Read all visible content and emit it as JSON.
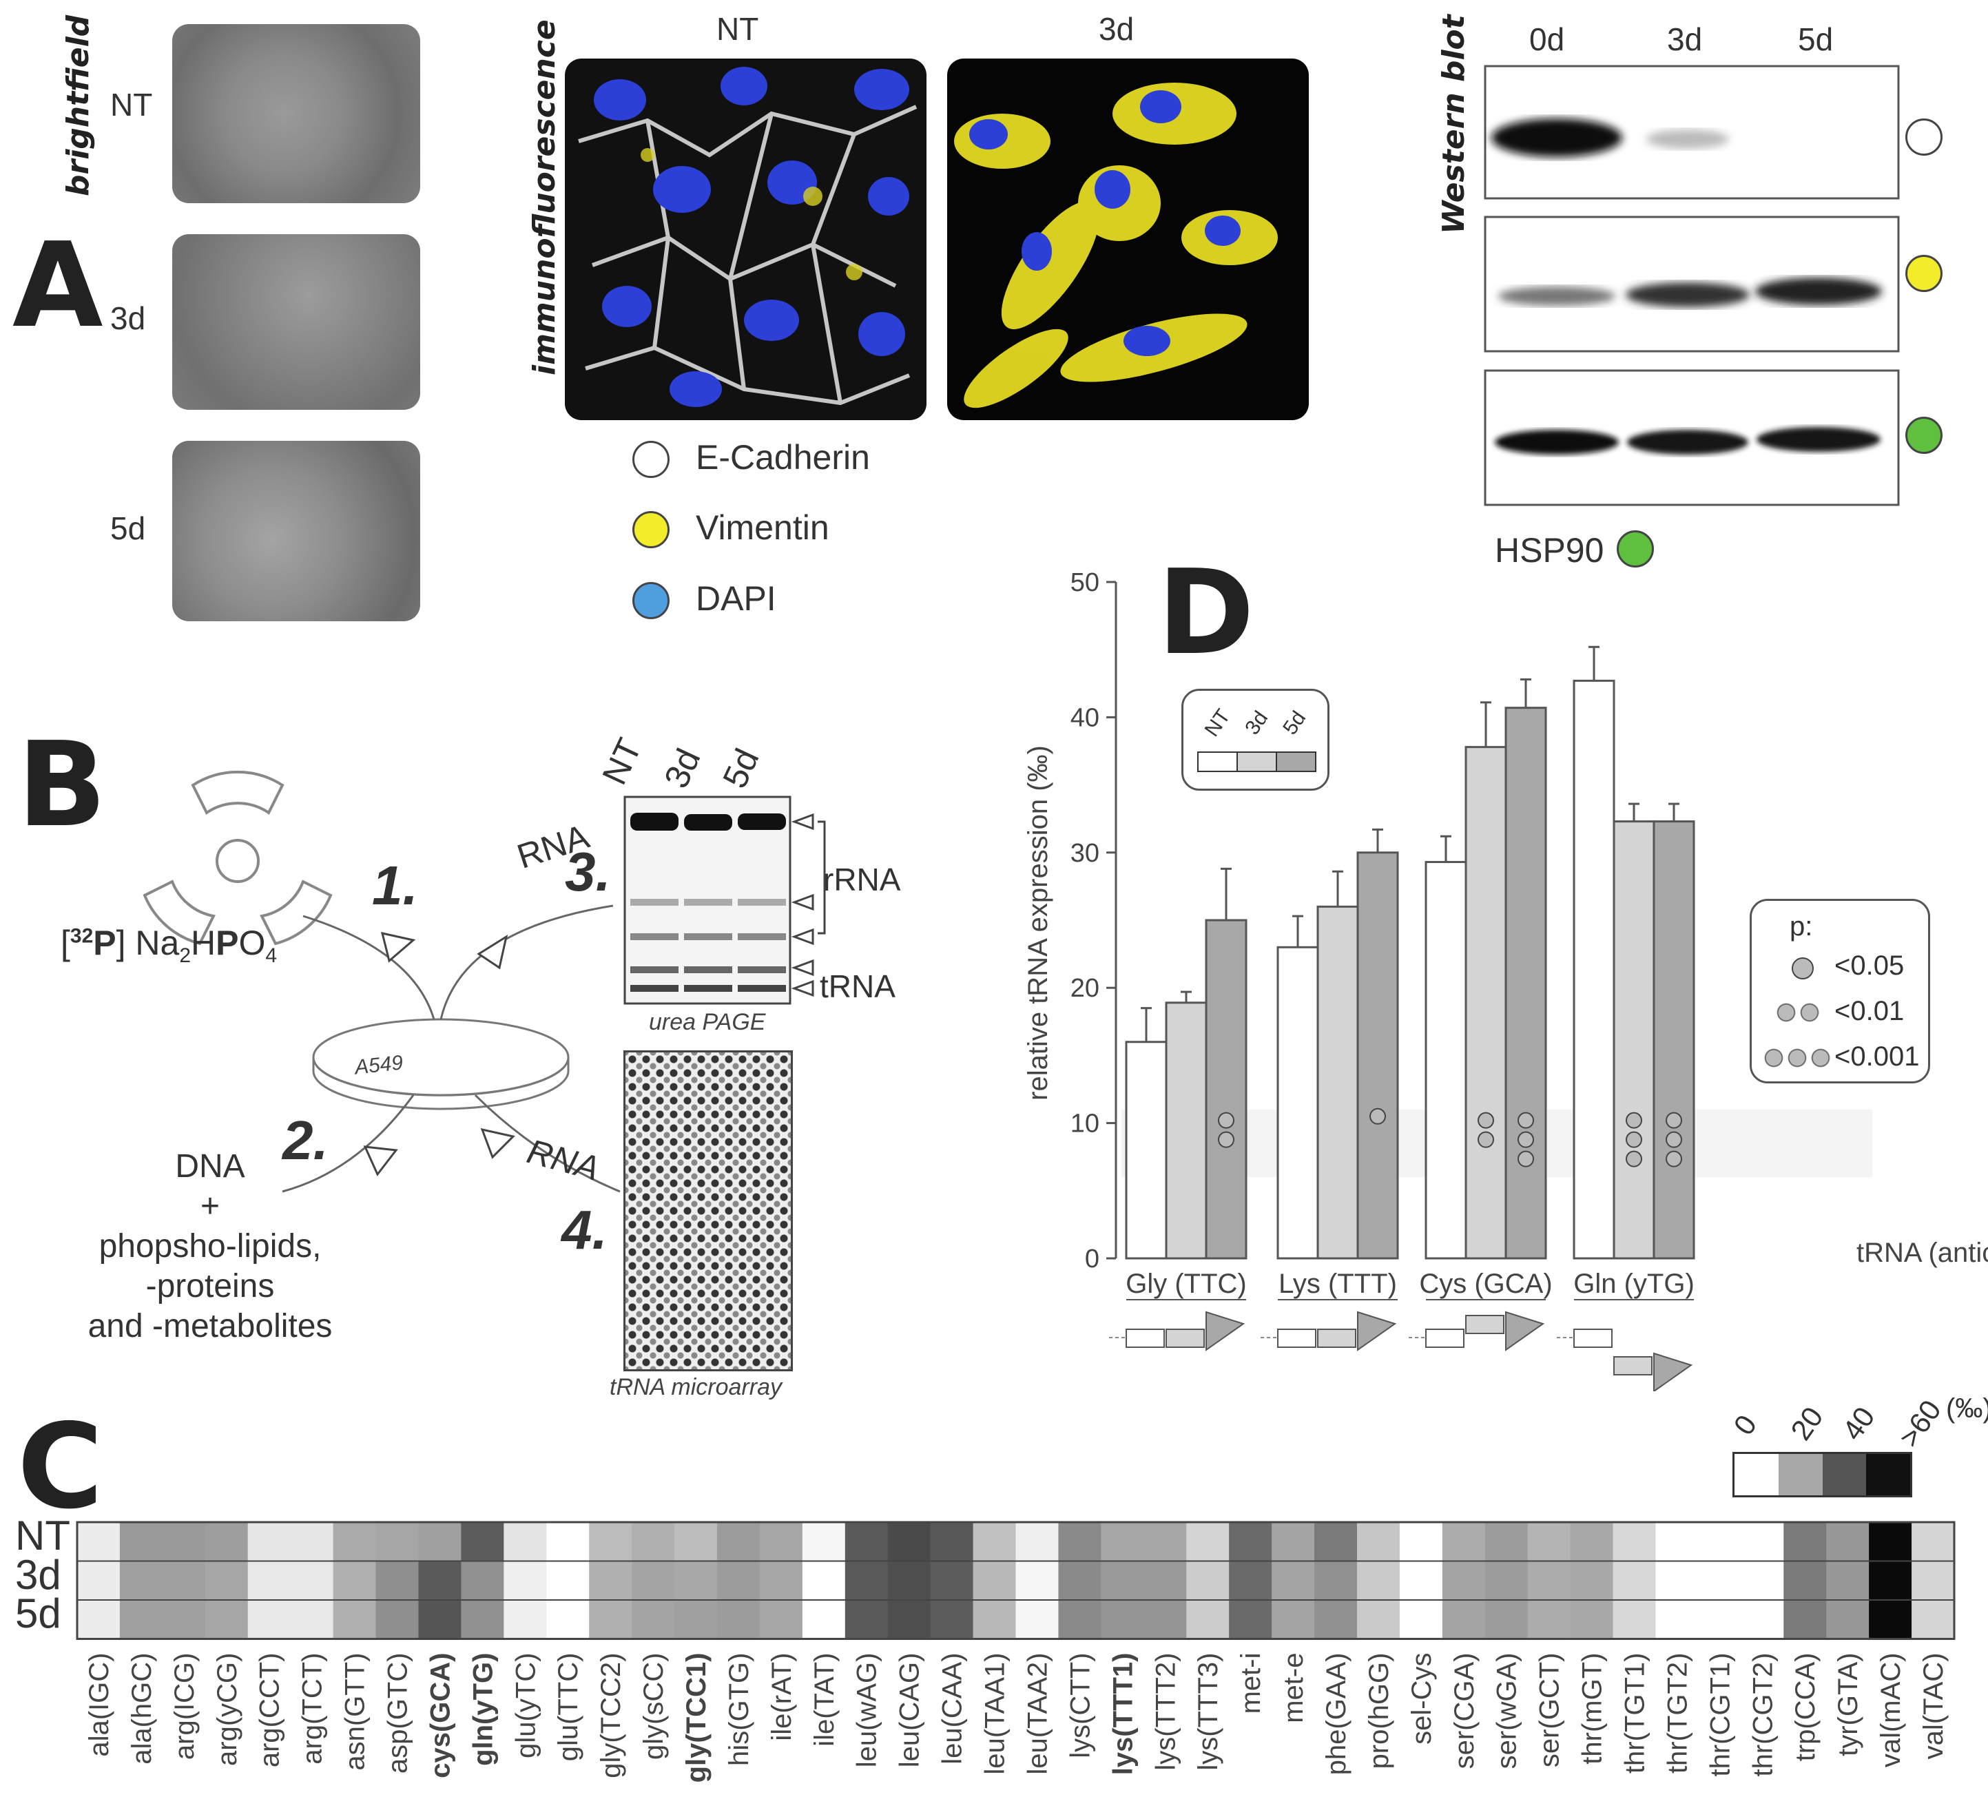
{
  "panelA": {
    "letter": "A",
    "brightfield": {
      "title": "brightfield",
      "rows": [
        "NT",
        "3d",
        "5d"
      ]
    },
    "immunofluorescence": {
      "title": "immunofluorescence",
      "cols": [
        "NT",
        "3d"
      ]
    },
    "legend": [
      {
        "label": "E-Cadherin",
        "color": "#ffffff"
      },
      {
        "label": "Vimentin",
        "color": "#f3ec2a"
      },
      {
        "label": "DAPI",
        "color": "#4f9fe0"
      }
    ],
    "western": {
      "title": "Western blot",
      "cols": [
        "0d",
        "3d",
        "5d"
      ],
      "hsp_label": "HSP90",
      "row_colors": [
        "#ffffff",
        "#f3ec2a",
        "#5fbf3f"
      ]
    }
  },
  "panelB": {
    "letter": "B",
    "isotope": {
      "pre": "[",
      "sup": "32",
      "bold1": "P",
      "mid": "] Na",
      "sub1": "2",
      "mid2": "H",
      "bold2": "P",
      "mid3": "O",
      "sub2": "4"
    },
    "dish_label": "A549",
    "steps": [
      "1.",
      "2.",
      "3.",
      "4."
    ],
    "rna_top": "RNA",
    "rna_bottom": "RNA",
    "dna_text": [
      "DNA",
      "+",
      "phopsho-lipids,",
      "-proteins",
      "and -metabolites"
    ],
    "gel": {
      "cols": [
        "NT",
        "3d",
        "5d"
      ],
      "rrna": "rRNA",
      "trna": "tRNA",
      "caption": "urea PAGE"
    },
    "microarray_caption": "tRNA microarray"
  },
  "panelC": {
    "letter": "C",
    "rows": [
      "NT",
      "3d",
      "5d"
    ],
    "scale": {
      "ticks": [
        "0",
        "20",
        "40",
        ">60"
      ],
      "unit": "(‰)",
      "colors": [
        "#ffffff",
        "#a8a8a8",
        "#555555",
        "#111111"
      ]
    },
    "columns": [
      {
        "name": "ala(IGC)",
        "bold": false,
        "shades": [
          "#ececec",
          "#ececec",
          "#ececec"
        ]
      },
      {
        "name": "ala(hGC)",
        "bold": false,
        "shades": [
          "#9a9a9a",
          "#a0a0a0",
          "#a0a0a0"
        ]
      },
      {
        "name": "arg(ICG)",
        "bold": false,
        "shades": [
          "#9a9a9a",
          "#a0a0a0",
          "#a0a0a0"
        ]
      },
      {
        "name": "arg(yCG)",
        "bold": false,
        "shades": [
          "#9e9e9e",
          "#a6a6a6",
          "#a6a6a6"
        ]
      },
      {
        "name": "arg(CCT)",
        "bold": false,
        "shades": [
          "#e6e6e6",
          "#e8e8e8",
          "#e8e8e8"
        ]
      },
      {
        "name": "arg(TCT)",
        "bold": false,
        "shades": [
          "#e6e6e6",
          "#e8e8e8",
          "#e8e8e8"
        ]
      },
      {
        "name": "asn(GTT)",
        "bold": false,
        "shades": [
          "#aaaaaa",
          "#b0b0b0",
          "#b0b0b0"
        ]
      },
      {
        "name": "asp(GTC)",
        "bold": false,
        "shades": [
          "#a6a6a6",
          "#8f8f8f",
          "#8f8f8f"
        ]
      },
      {
        "name": "cys(GCA)",
        "bold": true,
        "shades": [
          "#a0a0a0",
          "#5a5a5a",
          "#555555"
        ]
      },
      {
        "name": "gln(yTG)",
        "bold": true,
        "shades": [
          "#5c5c5c",
          "#909090",
          "#909090"
        ]
      },
      {
        "name": "glu(yTC)",
        "bold": false,
        "shades": [
          "#e4e4e4",
          "#efefef",
          "#efefef"
        ]
      },
      {
        "name": "glu(TTC)",
        "bold": false,
        "shades": [
          "#ffffff",
          "#ffffff",
          "#ffffff"
        ]
      },
      {
        "name": "gly(TCC2)",
        "bold": false,
        "shades": [
          "#bcbcbc",
          "#b0b0b0",
          "#b0b0b0"
        ]
      },
      {
        "name": "gly(sCC)",
        "bold": false,
        "shades": [
          "#b0b0b0",
          "#a4a4a4",
          "#a4a4a4"
        ]
      },
      {
        "name": "gly(TCC1)",
        "bold": true,
        "shades": [
          "#bdbdbd",
          "#a8a8a8",
          "#a0a0a0"
        ]
      },
      {
        "name": "his(GTG)",
        "bold": false,
        "shades": [
          "#9c9c9c",
          "#9c9c9c",
          "#9c9c9c"
        ]
      },
      {
        "name": "ile(rAT)",
        "bold": false,
        "shades": [
          "#a6a6a6",
          "#a6a6a6",
          "#a6a6a6"
        ]
      },
      {
        "name": "ile(TAT)",
        "bold": false,
        "shades": [
          "#f6f6f6",
          "#ffffff",
          "#ffffff"
        ]
      },
      {
        "name": "leu(wAG)",
        "bold": false,
        "shades": [
          "#5a5a5a",
          "#5a5a5a",
          "#5a5a5a"
        ]
      },
      {
        "name": "leu(CAG)",
        "bold": false,
        "shades": [
          "#4a4a4a",
          "#4e4e4e",
          "#4e4e4e"
        ]
      },
      {
        "name": "leu(CAA)",
        "bold": false,
        "shades": [
          "#585858",
          "#5c5c5c",
          "#5c5c5c"
        ]
      },
      {
        "name": "leu(TAA1)",
        "bold": false,
        "shades": [
          "#c0c0c0",
          "#b8b8b8",
          "#b8b8b8"
        ]
      },
      {
        "name": "leu(TAA2)",
        "bold": false,
        "shades": [
          "#f0f0f0",
          "#f6f6f6",
          "#f6f6f6"
        ]
      },
      {
        "name": "lys(CTT)",
        "bold": false,
        "shades": [
          "#8a8a8a",
          "#8a8a8a",
          "#8a8a8a"
        ]
      },
      {
        "name": "lys(TTT1)",
        "bold": true,
        "shades": [
          "#a6a6a6",
          "#9a9a9a",
          "#949494"
        ]
      },
      {
        "name": "lys(TTT2)",
        "bold": false,
        "shades": [
          "#a6a6a6",
          "#9a9a9a",
          "#949494"
        ]
      },
      {
        "name": "lys(TTT3)",
        "bold": false,
        "shades": [
          "#d4d4d4",
          "#cccccc",
          "#cccccc"
        ]
      },
      {
        "name": "met-i",
        "bold": false,
        "shades": [
          "#6a6a6a",
          "#6a6a6a",
          "#6a6a6a"
        ]
      },
      {
        "name": "met-e",
        "bold": false,
        "shades": [
          "#a4a4a4",
          "#a4a4a4",
          "#a4a4a4"
        ]
      },
      {
        "name": "phe(GAA)",
        "bold": false,
        "shades": [
          "#7a7a7a",
          "#909090",
          "#909090"
        ]
      },
      {
        "name": "pro(hGG)",
        "bold": false,
        "shades": [
          "#c6c6c6",
          "#cacaca",
          "#cacaca"
        ]
      },
      {
        "name": "sel-Cys",
        "bold": false,
        "shades": [
          "#ffffff",
          "#ffffff",
          "#ffffff"
        ]
      },
      {
        "name": "ser(CGA)",
        "bold": false,
        "shades": [
          "#acacac",
          "#a4a4a4",
          "#a4a4a4"
        ]
      },
      {
        "name": "ser(wGA)",
        "bold": false,
        "shades": [
          "#9c9c9c",
          "#9c9c9c",
          "#9c9c9c"
        ]
      },
      {
        "name": "ser(GCT)",
        "bold": false,
        "shades": [
          "#b4b4b4",
          "#acacac",
          "#acacac"
        ]
      },
      {
        "name": "thr(mGT)",
        "bold": false,
        "shades": [
          "#a8a8a8",
          "#a8a8a8",
          "#a8a8a8"
        ]
      },
      {
        "name": "thr(TGT1)",
        "bold": false,
        "shades": [
          "#d8d8d8",
          "#d8d8d8",
          "#d8d8d8"
        ]
      },
      {
        "name": "thr(TGT2)",
        "bold": false,
        "shades": [
          "#ffffff",
          "#ffffff",
          "#ffffff"
        ]
      },
      {
        "name": "thr(CGT1)",
        "bold": false,
        "shades": [
          "#ffffff",
          "#ffffff",
          "#ffffff"
        ]
      },
      {
        "name": "thr(CGT2)",
        "bold": false,
        "shades": [
          "#ffffff",
          "#ffffff",
          "#ffffff"
        ]
      },
      {
        "name": "trp(CCA)",
        "bold": false,
        "shades": [
          "#7a7a7a",
          "#7a7a7a",
          "#7a7a7a"
        ]
      },
      {
        "name": "tyr(GTA)",
        "bold": false,
        "shades": [
          "#989898",
          "#989898",
          "#989898"
        ]
      },
      {
        "name": "val(mAC)",
        "bold": false,
        "shades": [
          "#0a0a0a",
          "#0a0a0a",
          "#0a0a0a"
        ]
      },
      {
        "name": "val(TAC)",
        "bold": false,
        "shades": [
          "#d6d6d6",
          "#d6d6d6",
          "#d6d6d6"
        ]
      }
    ]
  },
  "panelD": {
    "letter": "D",
    "legend_series": [
      "NT",
      "3d",
      "5d"
    ],
    "p_legend": {
      "title": "p:",
      "items": [
        "<0.05",
        "<0.01",
        "<0.001"
      ]
    },
    "chart_data": {
      "type": "bar",
      "ylabel": "relative tRNA expression (‰)",
      "xlabel": "tRNA (anticodon)",
      "ylim": [
        0,
        50
      ],
      "yticks": [
        0,
        10,
        20,
        30,
        40,
        50
      ],
      "categories": [
        "Gly (TTC)",
        "Lys (TTT)",
        "Cys (GCA)",
        "Gln (yTG)"
      ],
      "series": [
        {
          "name": "NT",
          "color": "#ffffff",
          "values": [
            16,
            23,
            29.3,
            42.7
          ],
          "errors": [
            2.5,
            2.3,
            1.9,
            2.5
          ]
        },
        {
          "name": "3d",
          "color": "#d4d4d4",
          "values": [
            18.9,
            26,
            37.8,
            32.3
          ],
          "errors": [
            0.8,
            2.6,
            3.3,
            1.3
          ]
        },
        {
          "name": "5d",
          "color": "#a8a8a8",
          "values": [
            25,
            30,
            40.7,
            32.3
          ],
          "errors": [
            3.8,
            1.7,
            2.1,
            1.3
          ]
        }
      ],
      "significance_circles": [
        [
          0,
          2,
          2
        ],
        [
          1,
          2,
          1
        ],
        [
          2,
          1,
          2
        ],
        [
          2,
          2,
          3
        ],
        [
          3,
          1,
          3
        ],
        [
          3,
          2,
          3
        ]
      ]
    }
  }
}
